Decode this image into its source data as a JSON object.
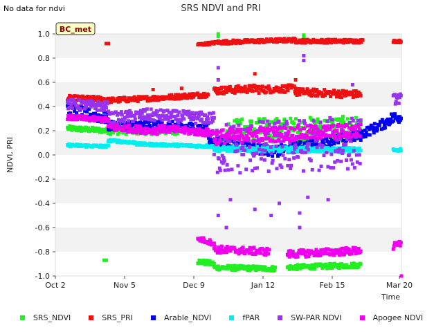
{
  "page": {
    "status_message": "No data for ndvi",
    "site_badge": "BC_met"
  },
  "chart_data": {
    "type": "scatter",
    "title": "SRS NDVI and PRI",
    "xlabel": "Time",
    "ylabel": "NDVI, PRI",
    "ylim": [
      -1.0,
      1.0
    ],
    "xlim": [
      0,
      170
    ],
    "x_unit": "days since Oct 2",
    "x_ticks": [
      {
        "label": "Oct 2",
        "x": 0
      },
      {
        "label": "Nov 5",
        "x": 34
      },
      {
        "label": "Dec 9",
        "x": 68
      },
      {
        "label": "Jan 12",
        "x": 102
      },
      {
        "label": "Feb 15",
        "x": 136
      },
      {
        "label": "Mar 20",
        "x": 169
      }
    ],
    "y_ticks": [
      -1.0,
      -0.8,
      -0.6,
      -0.4,
      -0.2,
      0.0,
      0.2,
      0.4,
      0.6,
      0.8,
      1.0
    ],
    "y_tick_labels": [
      "-1.0",
      "-0.8",
      "-0.6",
      "-0.4",
      "-0.2",
      "0.0",
      "0.2",
      "0.4",
      "0.6",
      "0.8",
      "1.0"
    ],
    "grid": "horizontal bands",
    "legend_position": "bottom",
    "series": [
      {
        "name": "SRS_NDVI",
        "color": "#22ee22",
        "segments": [
          {
            "x_start": 6,
            "x_end": 26,
            "y_start": 0.22,
            "y_end": 0.2,
            "jitter": 0.02
          },
          {
            "x_start": 26,
            "x_end": 60,
            "y_start": 0.2,
            "y_end": 0.2,
            "jitter": 0.03
          },
          {
            "x_start": 70,
            "x_end": 78,
            "y_start": -0.88,
            "y_end": -0.9,
            "jitter": 0.02
          },
          {
            "x_start": 78,
            "x_end": 108,
            "y_start": -0.93,
            "y_end": -0.94,
            "jitter": 0.02
          },
          {
            "x_start": 114,
            "x_end": 150,
            "y_start": -0.93,
            "y_end": -0.91,
            "jitter": 0.02
          },
          {
            "x_start": 84,
            "x_end": 150,
            "y_start": 0.2,
            "y_end": 0.22,
            "jitter": 0.1
          }
        ],
        "points": [
          [
            24,
            -0.87
          ],
          [
            25,
            -0.87
          ],
          [
            80,
            1.0
          ],
          [
            80,
            0.98
          ],
          [
            122,
            0.99
          ],
          [
            122,
            0.97
          ]
        ]
      },
      {
        "name": "SRS_PRI",
        "color": "#ee1111",
        "segments": [
          {
            "x_start": 6,
            "x_end": 26,
            "y_start": 0.47,
            "y_end": 0.46,
            "jitter": 0.02
          },
          {
            "x_start": 26,
            "x_end": 50,
            "y_start": 0.45,
            "y_end": 0.47,
            "jitter": 0.02
          },
          {
            "x_start": 50,
            "x_end": 75,
            "y_start": 0.47,
            "y_end": 0.5,
            "jitter": 0.02
          },
          {
            "x_start": 78,
            "x_end": 100,
            "y_start": 0.53,
            "y_end": 0.55,
            "jitter": 0.03
          },
          {
            "x_start": 100,
            "x_end": 118,
            "y_start": 0.54,
            "y_end": 0.55,
            "jitter": 0.03
          },
          {
            "x_start": 118,
            "x_end": 150,
            "y_start": 0.52,
            "y_end": 0.5,
            "jitter": 0.03
          },
          {
            "x_start": 70,
            "x_end": 80,
            "y_start": 0.91,
            "y_end": 0.93,
            "jitter": 0.01
          },
          {
            "x_start": 80,
            "x_end": 118,
            "y_start": 0.93,
            "y_end": 0.95,
            "jitter": 0.015
          },
          {
            "x_start": 118,
            "x_end": 151,
            "y_start": 0.94,
            "y_end": 0.94,
            "jitter": 0.015
          },
          {
            "x_start": 166,
            "x_end": 178,
            "y_start": 0.94,
            "y_end": 0.93,
            "jitter": 0.01
          }
        ],
        "points": [
          [
            25,
            0.92
          ],
          [
            26,
            0.92
          ],
          [
            48,
            0.54
          ],
          [
            62,
            0.55
          ],
          [
            98,
            0.67
          ],
          [
            118,
            0.62
          ]
        ]
      },
      {
        "name": "Arable_NDVI",
        "color": "#0000ee",
        "segments": [
          {
            "x_start": 6,
            "x_end": 26,
            "y_start": 0.37,
            "y_end": 0.3,
            "jitter": 0.05
          },
          {
            "x_start": 26,
            "x_end": 45,
            "y_start": 0.24,
            "y_end": 0.25,
            "jitter": 0.04
          },
          {
            "x_start": 45,
            "x_end": 75,
            "y_start": 0.25,
            "y_end": 0.22,
            "jitter": 0.04
          },
          {
            "x_start": 75,
            "x_end": 110,
            "y_start": 0.12,
            "y_end": 0.02,
            "jitter": 0.04
          },
          {
            "x_start": 110,
            "x_end": 150,
            "y_start": 0.04,
            "y_end": 0.16,
            "jitter": 0.04
          },
          {
            "x_start": 150,
            "x_end": 163,
            "y_start": 0.17,
            "y_end": 0.27,
            "jitter": 0.04
          },
          {
            "x_start": 163,
            "x_end": 178,
            "y_start": 0.29,
            "y_end": 0.35,
            "jitter": 0.05
          }
        ],
        "points": []
      },
      {
        "name": "fPAR",
        "color": "#00eeee",
        "segments": [
          {
            "x_start": 6,
            "x_end": 26,
            "y_start": 0.08,
            "y_end": 0.07,
            "jitter": 0.01
          },
          {
            "x_start": 26,
            "x_end": 40,
            "y_start": 0.12,
            "y_end": 0.1,
            "jitter": 0.01
          },
          {
            "x_start": 40,
            "x_end": 78,
            "y_start": 0.09,
            "y_end": 0.07,
            "jitter": 0.01
          },
          {
            "x_start": 78,
            "x_end": 150,
            "y_start": 0.05,
            "y_end": 0.04,
            "jitter": 0.02
          },
          {
            "x_start": 166,
            "x_end": 178,
            "y_start": 0.04,
            "y_end": 0.05,
            "jitter": 0.01
          }
        ],
        "points": []
      },
      {
        "name": "SW-PAR NDVI",
        "color": "#9933ee",
        "segments": [
          {
            "x_start": 6,
            "x_end": 26,
            "y_start": 0.42,
            "y_end": 0.4,
            "jitter": 0.04
          },
          {
            "x_start": 26,
            "x_end": 45,
            "y_start": 0.3,
            "y_end": 0.33,
            "jitter": 0.05
          },
          {
            "x_start": 45,
            "x_end": 78,
            "y_start": 0.33,
            "y_end": 0.3,
            "jitter": 0.05
          },
          {
            "x_start": 78,
            "x_end": 150,
            "y_start": 0.05,
            "y_end": 0.1,
            "jitter": 0.22
          },
          {
            "x_start": 166,
            "x_end": 178,
            "y_start": 0.46,
            "y_end": 0.48,
            "jitter": 0.04
          }
        ],
        "points": [
          [
            80,
            -0.5
          ],
          [
            84,
            -0.6
          ],
          [
            86,
            -0.37
          ],
          [
            98,
            -0.45
          ],
          [
            106,
            -0.5
          ],
          [
            110,
            -0.4
          ],
          [
            120,
            -0.48
          ],
          [
            120,
            -0.6
          ],
          [
            124,
            -0.35
          ],
          [
            134,
            -0.37
          ],
          [
            122,
            0.82
          ],
          [
            122,
            0.78
          ],
          [
            80,
            0.62
          ],
          [
            80,
            0.72
          ],
          [
            146,
            0.58
          ],
          [
            176,
            0.64
          ]
        ]
      },
      {
        "name": "Apogee NDVI",
        "color": "#ee00ee",
        "segments": [
          {
            "x_start": 6,
            "x_end": 26,
            "y_start": 0.31,
            "y_end": 0.29,
            "jitter": 0.02
          },
          {
            "x_start": 26,
            "x_end": 50,
            "y_start": 0.23,
            "y_end": 0.2,
            "jitter": 0.03
          },
          {
            "x_start": 50,
            "x_end": 78,
            "y_start": 0.22,
            "y_end": 0.18,
            "jitter": 0.03
          },
          {
            "x_start": 78,
            "x_end": 150,
            "y_start": 0.15,
            "y_end": 0.2,
            "jitter": 0.06
          },
          {
            "x_start": 70,
            "x_end": 78,
            "y_start": -0.69,
            "y_end": -0.73,
            "jitter": 0.02
          },
          {
            "x_start": 78,
            "x_end": 105,
            "y_start": -0.78,
            "y_end": -0.8,
            "jitter": 0.03
          },
          {
            "x_start": 114,
            "x_end": 150,
            "y_start": -0.82,
            "y_end": -0.79,
            "jitter": 0.03
          },
          {
            "x_start": 166,
            "x_end": 178,
            "y_start": -0.76,
            "y_end": -0.67,
            "jitter": 0.03
          }
        ],
        "points": [
          [
            170,
            -1.0
          ]
        ]
      }
    ]
  }
}
